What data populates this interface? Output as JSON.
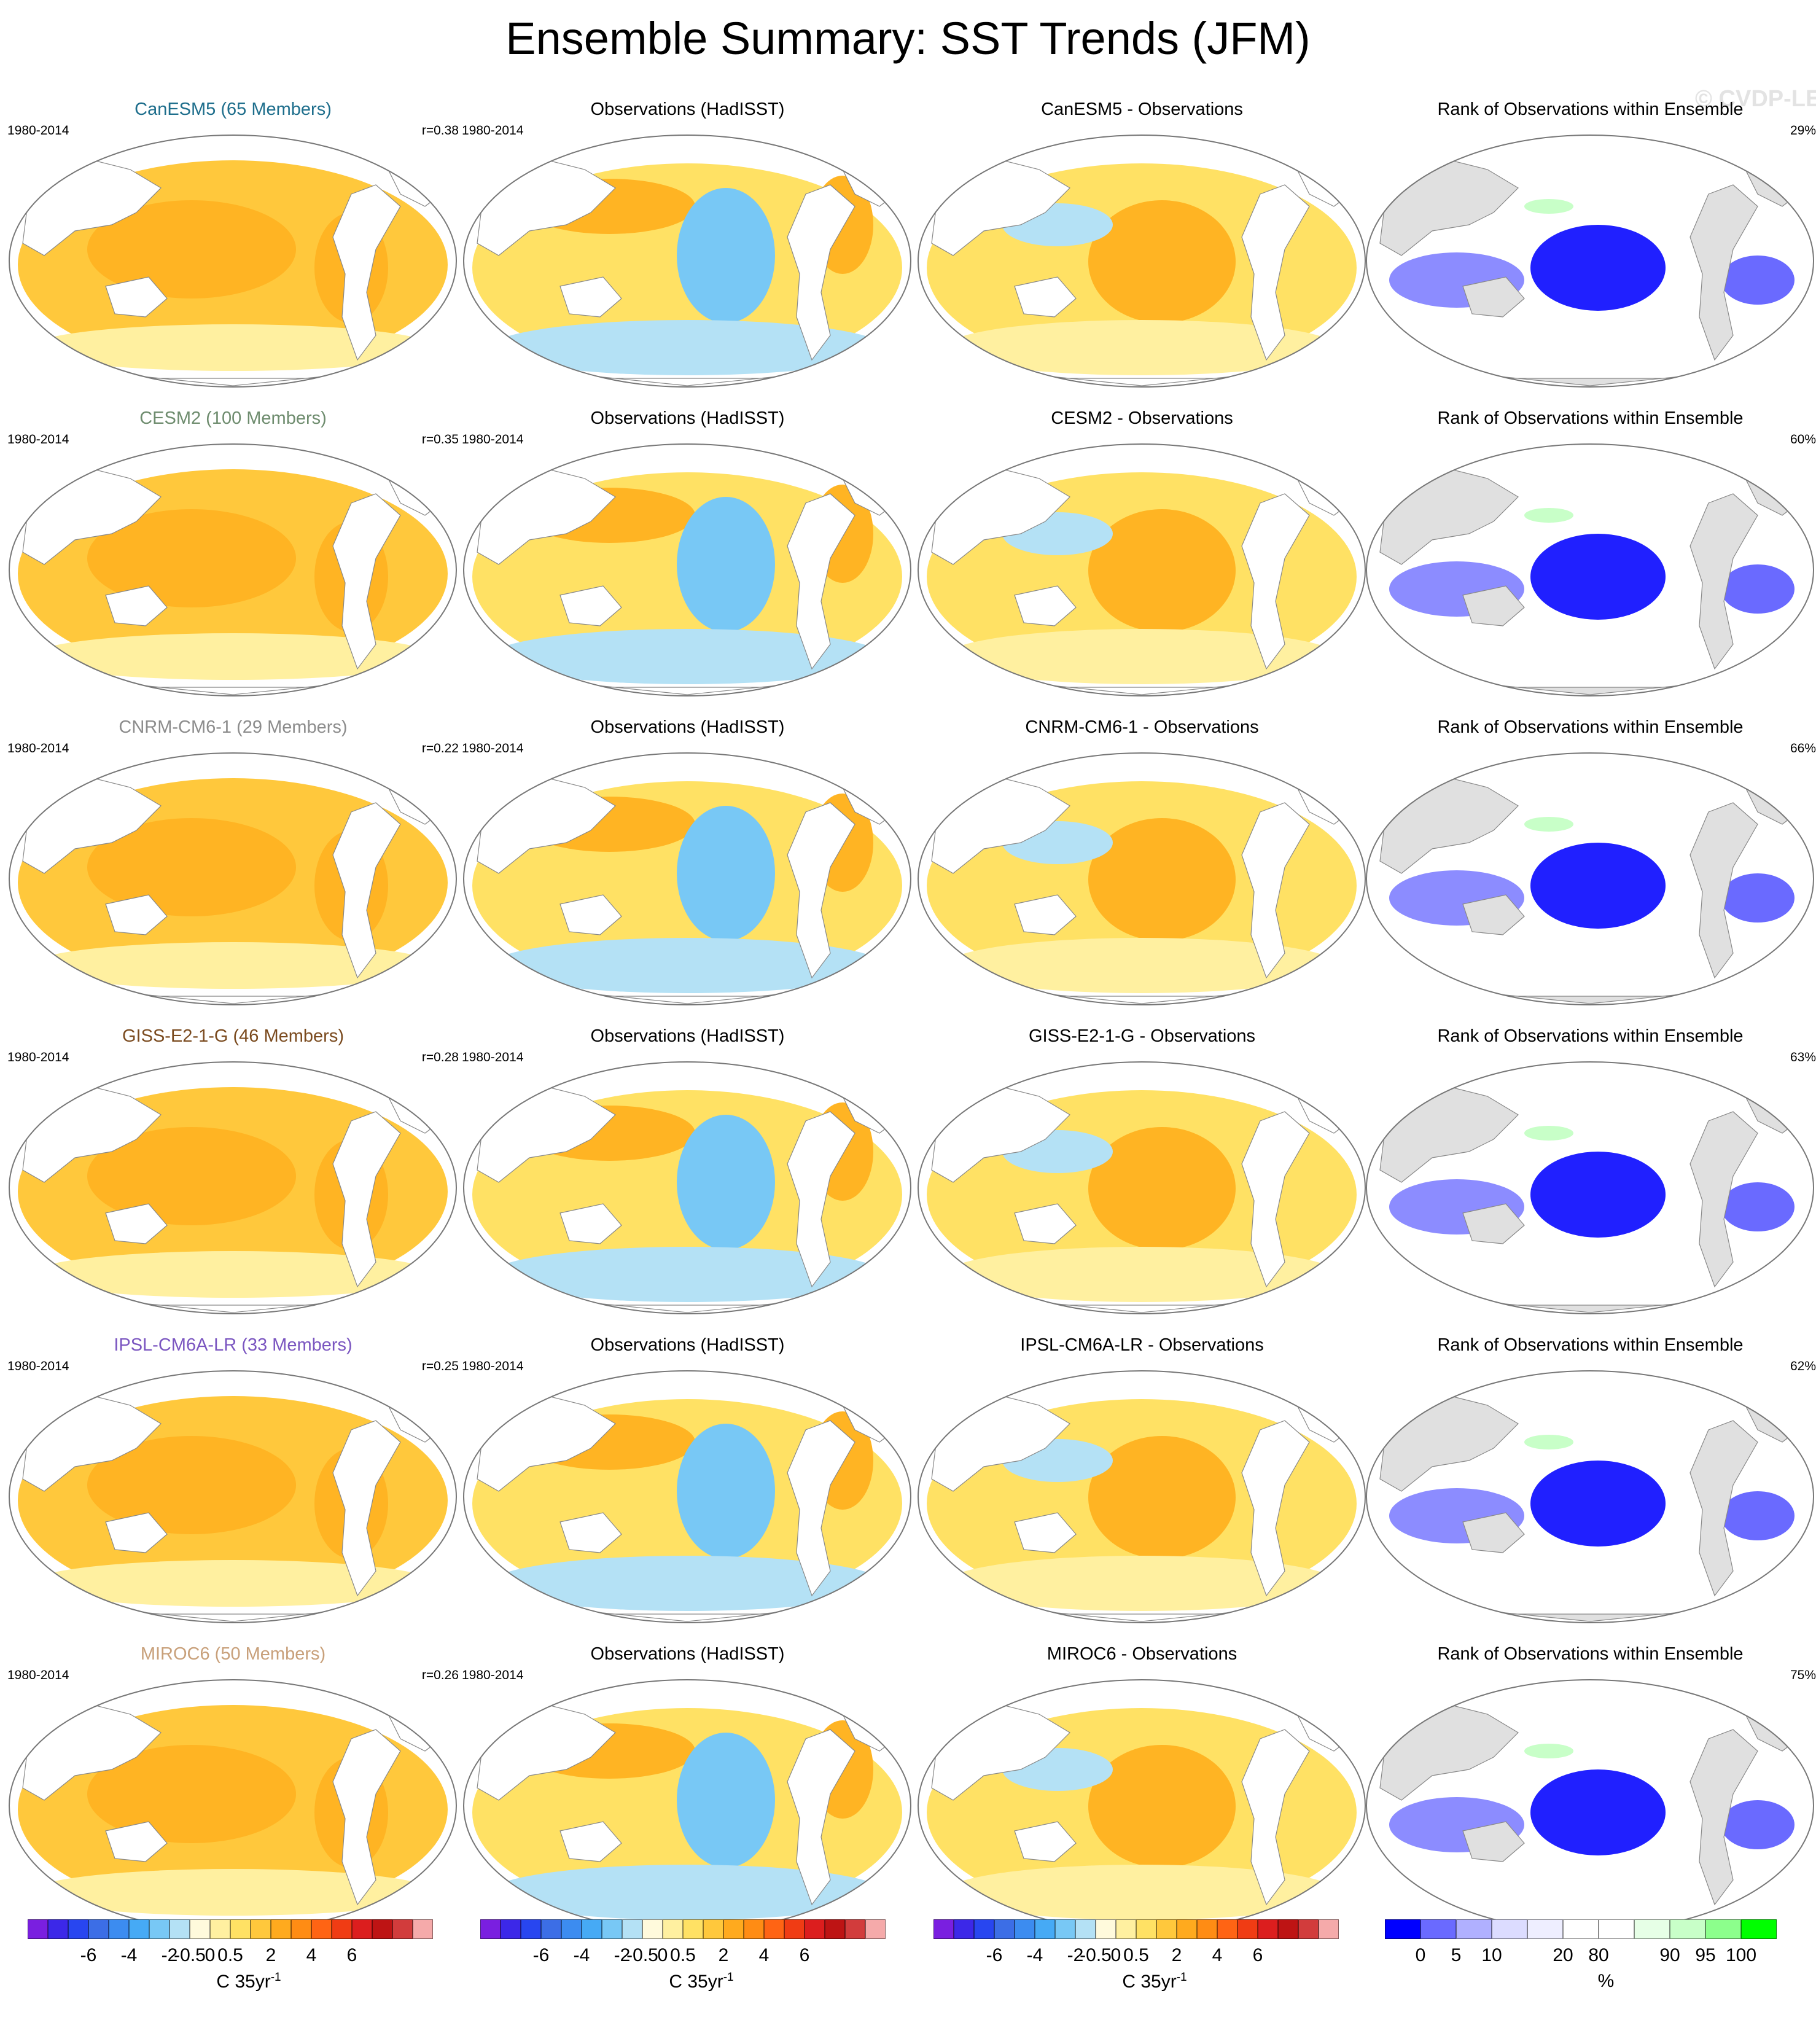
{
  "title": "Ensemble Summary: SST Trends (JFM)",
  "watermark": "© CVDP-LE",
  "period": "1980-2014",
  "obs_title": "Observations (HadISST)",
  "rank_title": "Rank of Observations within Ensemble",
  "rows": [
    {
      "model_title": "CanESM5 (65 Members)",
      "model_color": "#1e6e8c",
      "r": "r=0.38",
      "diff_title": "CanESM5 - Observations",
      "rank_pct": "29%"
    },
    {
      "model_title": "CESM2 (100 Members)",
      "model_color": "#6e8c6e",
      "r": "r=0.35",
      "diff_title": "CESM2 - Observations",
      "rank_pct": "60%"
    },
    {
      "model_title": "CNRM-CM6-1 (29 Members)",
      "model_color": "#8c8c8c",
      "r": "r=0.22",
      "diff_title": "CNRM-CM6-1 - Observations",
      "rank_pct": "66%"
    },
    {
      "model_title": "GISS-E2-1-G (46 Members)",
      "model_color": "#7a4a1e",
      "r": "r=0.28",
      "diff_title": "GISS-E2-1-G - Observations",
      "rank_pct": "63%"
    },
    {
      "model_title": "IPSL-CM6A-LR (33 Members)",
      "model_color": "#7a55c0",
      "r": "r=0.25",
      "diff_title": "IPSL-CM6A-LR - Observations",
      "rank_pct": "62%"
    },
    {
      "model_title": "MIROC6 (50 Members)",
      "model_color": "#c8a07a",
      "r": "r=0.26",
      "diff_title": "MIROC6 - Observations",
      "rank_pct": "75%"
    }
  ],
  "colorbar_sst": {
    "colors": [
      "#7a1fe0",
      "#3c28e8",
      "#2846f0",
      "#3c6ee6",
      "#3c8cf0",
      "#46aaf5",
      "#78c8f5",
      "#b4e1f5",
      "#fffadc",
      "#fff0a0",
      "#ffe164",
      "#ffc83c",
      "#ffaa1e",
      "#ff8c14",
      "#ff6414",
      "#f03c14",
      "#dc1e1e",
      "#be1414",
      "#d23c3c",
      "#f5aaaa"
    ],
    "tick_labels": [
      "-6",
      "-4",
      "-2",
      "-0.5",
      "0",
      "0.5",
      "2",
      "4",
      "6"
    ],
    "unit": "C 35yr",
    "unit_exp": "-1"
  },
  "colorbar_rank": {
    "colors": [
      "#0000ff",
      "#6a6aff",
      "#b0b0ff",
      "#dcdcff",
      "#eeeeff",
      "#ffffff",
      "#ffffff",
      "#e6ffe6",
      "#c8ffc8",
      "#8cff8c",
      "#00ff00"
    ],
    "tick_labels": [
      "0",
      "5",
      "10",
      "20",
      "80",
      "90",
      "95",
      "100"
    ],
    "unit": "%"
  }
}
